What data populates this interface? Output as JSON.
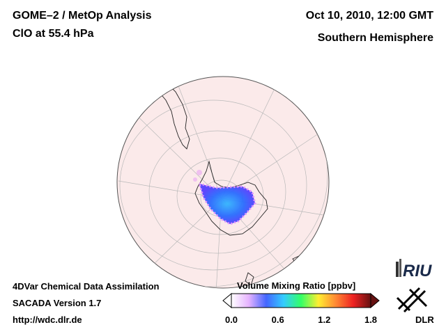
{
  "header": {
    "title_line1": "GOME–2 / MetOp Analysis",
    "title_line2": "ClO at 55.4 hPa",
    "date": "Oct 10, 2010, 12:00 GMT",
    "region": "Southern Hemisphere"
  },
  "footer": {
    "line1": "4DVar Chemical Data Assimilation",
    "line2": "SACADA Version 1.7",
    "line3": "http://wdc.dlr.de"
  },
  "colorbar": {
    "title": "Volume Mixing Ratio [ppbv]",
    "ticks": [
      "0.0",
      "0.6",
      "1.2",
      "1.8"
    ],
    "tick_values": [
      0.0,
      0.6,
      1.2,
      1.8
    ],
    "range": [
      0.0,
      1.8
    ],
    "colors": [
      "#ffffff",
      "#e6b3ff",
      "#4466ff",
      "#33ccff",
      "#33ff66",
      "#ffee33",
      "#ff8833",
      "#ee2222",
      "#661111"
    ]
  },
  "logos": {
    "riu": "RIU",
    "dlr": "DLR"
  },
  "map": {
    "background_color": "#fbeaea",
    "hotspot_color": "#2277ff"
  }
}
